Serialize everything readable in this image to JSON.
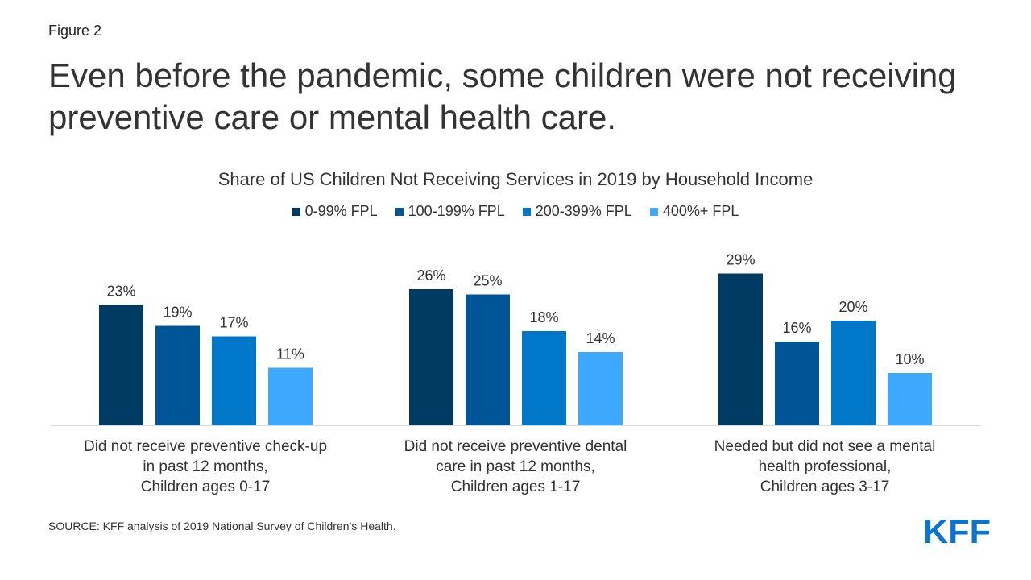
{
  "figure_label": "Figure 2",
  "headline": "Even before the pandemic, some children were not receiving preventive care or mental health care.",
  "source": "SOURCE: KFF analysis of 2019 National Survey of Children’s Health.",
  "logo_text": "KFF",
  "colors": {
    "series": [
      "#003b63",
      "#005596",
      "#0077c8",
      "#3ea8ff"
    ],
    "logo": "#0b74d1"
  },
  "chart_data": {
    "type": "bar",
    "title": "Share of US Children Not Receiving Services in 2019 by Household Income",
    "categories": [
      [
        "Did not receive preventive check-up",
        "in past 12 months,",
        "Children ages 0-17"
      ],
      [
        "Did not receive preventive dental",
        "care in past 12 months,",
        "Children ages 1-17"
      ],
      [
        "Needed but did not see a mental",
        "health professional,",
        "Children ages 3-17"
      ]
    ],
    "series": [
      {
        "name": "0-99% FPL",
        "values": [
          23,
          26,
          29
        ],
        "labels": [
          "23%",
          "26%",
          "29%"
        ]
      },
      {
        "name": "100-199% FPL",
        "values": [
          19,
          25,
          16
        ],
        "labels": [
          "19%",
          "25%",
          "16%"
        ]
      },
      {
        "name": "200-399% FPL",
        "values": [
          17,
          18,
          20
        ],
        "labels": [
          "17%",
          "18%",
          "20%"
        ]
      },
      {
        "name": "400%+ FPL",
        "values": [
          11,
          14,
          10
        ],
        "labels": [
          "11%",
          "14%",
          "10%"
        ]
      }
    ],
    "ylim": [
      0,
      30
    ],
    "legend_position": "top-center",
    "grid": false
  }
}
